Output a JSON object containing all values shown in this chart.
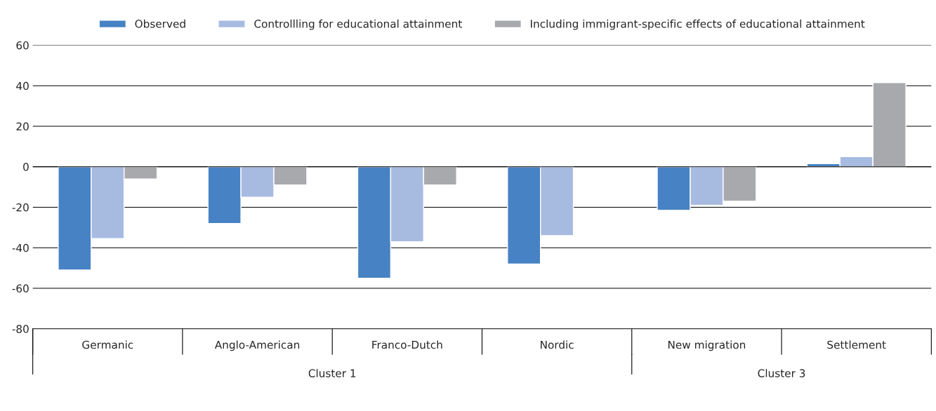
{
  "chart_data": {
    "type": "bar",
    "categories": [
      "Germanic",
      "Anglo-American",
      "Franco-Dutch",
      "Nordic",
      "New migration",
      "Settlement"
    ],
    "series": [
      {
        "name": "Observed",
        "color": "#4682c4",
        "values": [
          -51,
          -28,
          -55,
          -48,
          -21.5,
          1.5
        ]
      },
      {
        "name": "Controllling for educational attainment",
        "color": "#a7bbe1",
        "values": [
          -35.5,
          -15,
          -37,
          -34,
          -19,
          5
        ]
      },
      {
        "name": "Including immigrant-specific effects of educational attainment",
        "color": "#a7a9ac",
        "values": [
          -6,
          -9,
          -9,
          null,
          -17,
          41.5
        ]
      }
    ],
    "ylim": [
      -80,
      60
    ],
    "yticks": [
      -80,
      -60,
      -40,
      -20,
      0,
      20,
      40,
      60
    ],
    "grid": "y",
    "legend": "top",
    "annotations": [
      "Cluster 1",
      "Cluster 3"
    ]
  }
}
